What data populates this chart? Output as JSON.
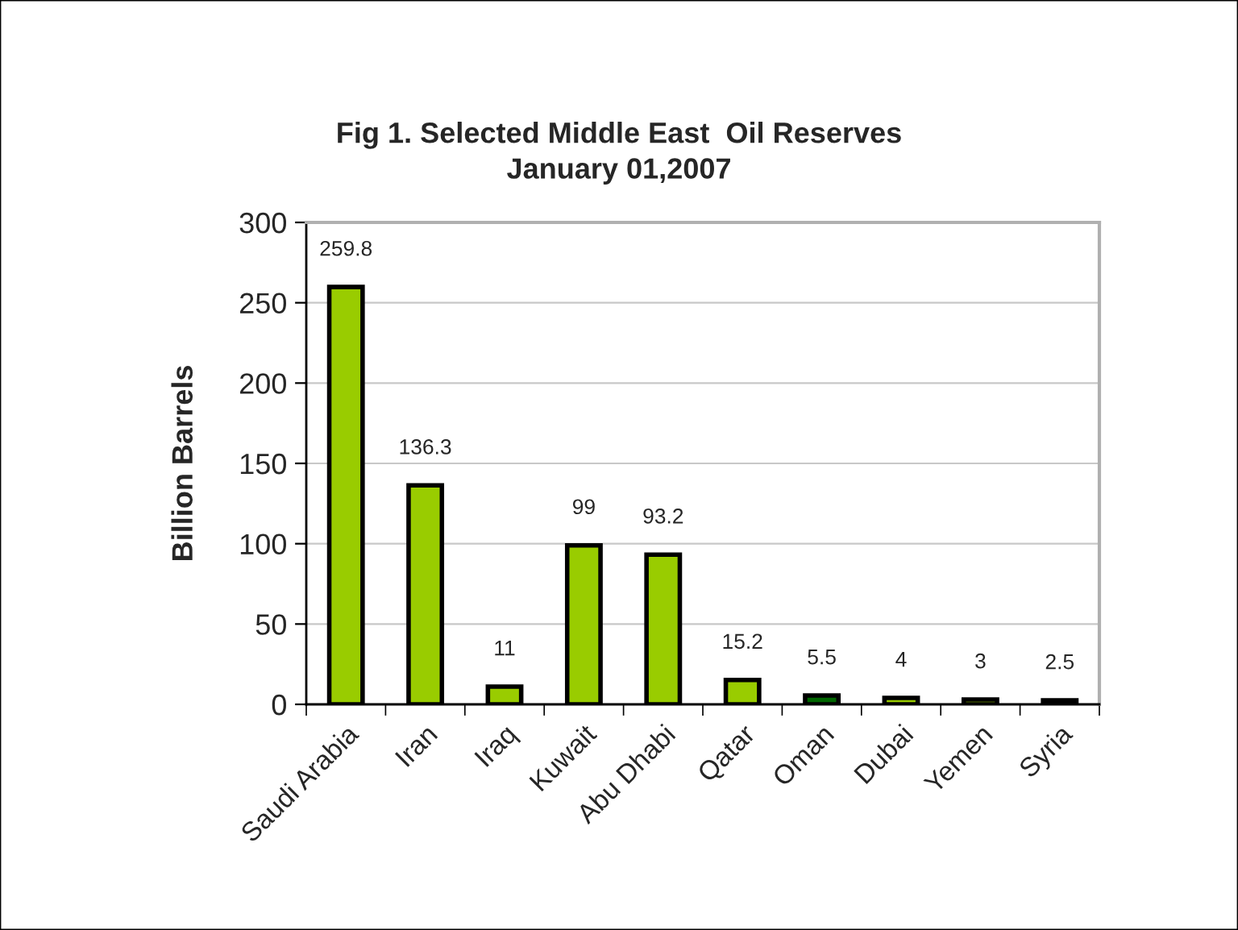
{
  "chart_data": {
    "type": "bar",
    "title": "Fig 1. Selected Middle East  Oil Reserves\nJanuary 01,2007",
    "ylabel": "Billion Barrels",
    "categories": [
      "Saudi Arabia",
      "Iran",
      "Iraq",
      "Kuwait",
      "Abu Dhabi",
      "Qatar",
      "Oman",
      "Dubai",
      "Yemen",
      "Syria"
    ],
    "values": [
      259.8,
      136.3,
      11,
      99,
      93.2,
      15.2,
      5.5,
      4,
      3,
      2.5
    ],
    "colors": [
      "#99cc00",
      "#99cc00",
      "#99cc00",
      "#99cc00",
      "#99cc00",
      "#99cc00",
      "#006600",
      "#99cc00",
      "#99cc00",
      "#99cc00"
    ],
    "ylim": [
      0,
      300
    ],
    "yticks": [
      0,
      50,
      100,
      150,
      200,
      250,
      300
    ],
    "grid": "y",
    "data_labels": true,
    "legend": false
  }
}
